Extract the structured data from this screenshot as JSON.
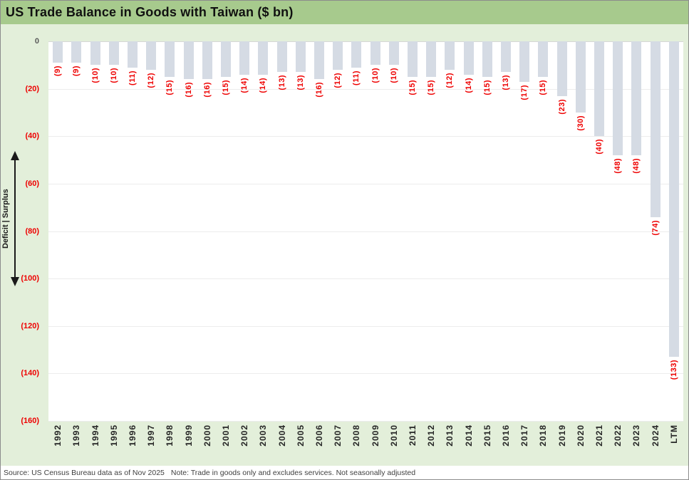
{
  "title": "US Trade Balance in Goods with Taiwan ($ bn)",
  "footer": {
    "source": "Source: US Census Bureau data as of Nov 2025",
    "note": "Note: Trade in goods only and excludes services. Not seasonally adjusted"
  },
  "colors": {
    "banner_green": "#a7ca8d",
    "background_green": "#e3efda",
    "bar_fill": "#d5dbe4",
    "negative_red": "#ee0000",
    "zero_label_gray": "#595959",
    "gridline": "#ececec"
  },
  "y_axis": {
    "tick_labels": [
      "0",
      "(20)",
      "(40)",
      "(60)",
      "(80)",
      "(100)",
      "(120)",
      "(140)",
      "(160)"
    ],
    "arrow_label": "Deficit   |   Surplus"
  },
  "chart_data": {
    "type": "bar",
    "title": "US Trade Balance in Goods with Taiwan ($ bn)",
    "xlabel": "",
    "ylabel": "Deficit | Surplus",
    "ylim": [
      -160,
      0
    ],
    "grid": true,
    "legend": false,
    "categories": [
      "1992",
      "1993",
      "1994",
      "1995",
      "1996",
      "1997",
      "1998",
      "1999",
      "2000",
      "2001",
      "2002",
      "2003",
      "2004",
      "2005",
      "2006",
      "2007",
      "2008",
      "2009",
      "2010",
      "2011",
      "2012",
      "2013",
      "2014",
      "2015",
      "2016",
      "2017",
      "2018",
      "2019",
      "2020",
      "2021",
      "2022",
      "2023",
      "2024",
      "LTM"
    ],
    "values": [
      -9,
      -9,
      -10,
      -10,
      -11,
      -12,
      -15,
      -16,
      -16,
      -15,
      -14,
      -14,
      -13,
      -13,
      -16,
      -12,
      -11,
      -10,
      -10,
      -15,
      -15,
      -12,
      -14,
      -15,
      -13,
      -17,
      -15,
      -23,
      -30,
      -40,
      -48,
      -48,
      -74,
      -133
    ],
    "data_labels": [
      "(9)",
      "(9)",
      "(10)",
      "(10)",
      "(11)",
      "(12)",
      "(15)",
      "(16)",
      "(16)",
      "(15)",
      "(14)",
      "(14)",
      "(13)",
      "(13)",
      "(16)",
      "(12)",
      "(11)",
      "(10)",
      "(10)",
      "(15)",
      "(15)",
      "(12)",
      "(14)",
      "(15)",
      "(13)",
      "(17)",
      "(15)",
      "(23)",
      "(30)",
      "(40)",
      "(48)",
      "(48)",
      "(74)",
      "(133)"
    ]
  }
}
